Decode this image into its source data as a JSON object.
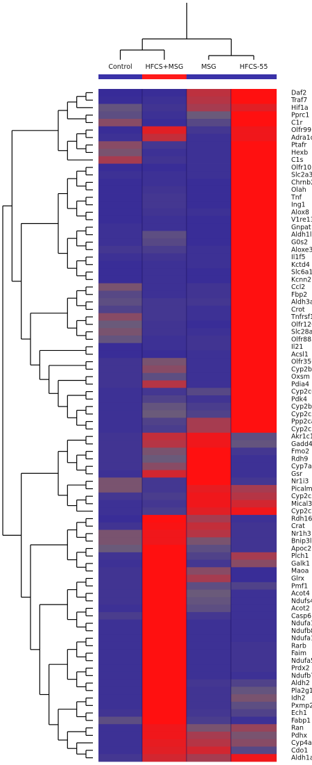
{
  "chart_data": {
    "type": "heatmap",
    "title": "",
    "xlabel": "",
    "ylabel": "",
    "columns": [
      "Control",
      "HFCS+MSG",
      "MSG",
      "HFCS-55"
    ],
    "column_groups": [
      [
        "Control",
        "HFCS+MSG"
      ],
      [
        "MSG",
        "HFCS-55"
      ]
    ],
    "column_bar_colors": [
      "#3a32a8",
      "#ff1a1a",
      "#3a32a8",
      "#3a32a8"
    ],
    "palette": {
      "low": "#2a1fa0",
      "mid": "#6a5a7a",
      "high": "#ff1010"
    },
    "scale_min": 0,
    "scale_max": 1,
    "genes": [
      "Daf2",
      "Traf7",
      "Hif1a",
      "Pprc1",
      "C1r",
      "Olfr99",
      "Adra1d",
      "Ptafr",
      "Hexb",
      "C1s",
      "Olfr1052",
      "Slc2a3",
      "Chrnb2",
      "Olah",
      "Tnf",
      "Ing1",
      "Alox8",
      "V1re13",
      "Gnpat",
      "Aldh1l2",
      "G0s2",
      "Aloxe3",
      "Il1f5",
      "Kctd4",
      "Slc6a15",
      "Kcnn2",
      "Ccl2",
      "Fbp2",
      "Aldh3a1",
      "Crot",
      "Tnfrsf10b",
      "Olfr1206",
      "Slc28a1",
      "Olfr883",
      "Il21",
      "Acsl1",
      "Olfr356",
      "Cyp2b9",
      "Oxsm",
      "Pdia4",
      "Cyp2c66",
      "Pdk4",
      "Cyp2b10",
      "Cyp2c37",
      "Ppp2ca",
      "Cyp2c50",
      "Akr1c19",
      "Gadd45b",
      "Fmo2",
      "Rdh9",
      "Cyp7a1",
      "Gsr",
      "Nr1i3",
      "Picalm",
      "Cyp2c55",
      "Mical3",
      "Cyp2c29",
      "Rdh16",
      "Crat",
      "Nr1h3",
      "Bnip3l",
      "Apoc2",
      "Plch1",
      "Galk1",
      "Maoa",
      "Glrx",
      "Pmf1",
      "Acot4",
      "Ndufs4",
      "Acot2",
      "Casp6",
      "Ndufa13",
      "Ndufb8",
      "Ndufa10",
      "Rarb",
      "Faim",
      "Ndufa5",
      "Prdx2",
      "Ndufb7",
      "Aldh2",
      "Pla2g12b",
      "Idh2",
      "Pxmp2",
      "Ech1",
      "Fabp1",
      "Ran",
      "Pdhx",
      "Cyp4a14",
      "Cdo1",
      "Aldh1a1"
    ],
    "values": [
      [
        0.1,
        0.12,
        0.78,
        1.0
      ],
      [
        0.12,
        0.15,
        0.75,
        1.0
      ],
      [
        0.45,
        0.18,
        0.7,
        0.9
      ],
      [
        0.4,
        0.15,
        0.5,
        1.0
      ],
      [
        0.6,
        0.12,
        0.35,
        1.0
      ],
      [
        0.12,
        0.9,
        0.2,
        0.95
      ],
      [
        0.15,
        0.8,
        0.15,
        0.95
      ],
      [
        0.6,
        0.2,
        0.15,
        1.0
      ],
      [
        0.55,
        0.15,
        0.15,
        1.0
      ],
      [
        0.7,
        0.18,
        0.15,
        1.0
      ],
      [
        0.12,
        0.12,
        0.15,
        1.0
      ],
      [
        0.15,
        0.15,
        0.15,
        1.0
      ],
      [
        0.12,
        0.15,
        0.12,
        1.0
      ],
      [
        0.12,
        0.18,
        0.12,
        1.0
      ],
      [
        0.12,
        0.2,
        0.12,
        1.0
      ],
      [
        0.12,
        0.2,
        0.12,
        1.0
      ],
      [
        0.12,
        0.18,
        0.15,
        1.0
      ],
      [
        0.12,
        0.15,
        0.12,
        1.0
      ],
      [
        0.15,
        0.15,
        0.12,
        1.0
      ],
      [
        0.15,
        0.4,
        0.12,
        1.0
      ],
      [
        0.15,
        0.35,
        0.12,
        1.0
      ],
      [
        0.2,
        0.25,
        0.15,
        1.0
      ],
      [
        0.15,
        0.18,
        0.15,
        1.0
      ],
      [
        0.12,
        0.15,
        0.15,
        1.0
      ],
      [
        0.12,
        0.15,
        0.12,
        1.0
      ],
      [
        0.12,
        0.15,
        0.12,
        1.0
      ],
      [
        0.55,
        0.15,
        0.18,
        1.0
      ],
      [
        0.35,
        0.15,
        0.18,
        1.0
      ],
      [
        0.4,
        0.2,
        0.2,
        1.0
      ],
      [
        0.3,
        0.2,
        0.15,
        1.0
      ],
      [
        0.6,
        0.2,
        0.15,
        1.0
      ],
      [
        0.5,
        0.18,
        0.12,
        1.0
      ],
      [
        0.55,
        0.18,
        0.15,
        1.0
      ],
      [
        0.45,
        0.15,
        0.18,
        1.0
      ],
      [
        0.12,
        0.15,
        0.18,
        1.0
      ],
      [
        0.12,
        0.12,
        0.15,
        1.0
      ],
      [
        0.18,
        0.55,
        0.15,
        1.0
      ],
      [
        0.18,
        0.6,
        0.15,
        1.0
      ],
      [
        0.18,
        0.4,
        0.15,
        1.0
      ],
      [
        0.18,
        0.75,
        0.15,
        1.0
      ],
      [
        0.15,
        0.2,
        0.35,
        1.0
      ],
      [
        0.15,
        0.3,
        0.18,
        1.0
      ],
      [
        0.15,
        0.45,
        0.25,
        1.0
      ],
      [
        0.15,
        0.5,
        0.3,
        1.0
      ],
      [
        0.15,
        0.3,
        0.7,
        1.0
      ],
      [
        0.15,
        0.25,
        0.7,
        1.0
      ],
      [
        0.18,
        0.8,
        0.95,
        0.4
      ],
      [
        0.18,
        0.75,
        0.95,
        0.45
      ],
      [
        0.18,
        0.55,
        1.0,
        0.2
      ],
      [
        0.18,
        0.5,
        1.0,
        0.15
      ],
      [
        0.18,
        0.6,
        1.0,
        0.15
      ],
      [
        0.15,
        0.85,
        1.0,
        0.15
      ],
      [
        0.55,
        0.2,
        1.0,
        0.2
      ],
      [
        0.55,
        0.2,
        0.92,
        0.7
      ],
      [
        0.2,
        0.25,
        0.95,
        0.75
      ],
      [
        0.15,
        0.2,
        0.95,
        0.85
      ],
      [
        0.15,
        0.25,
        0.9,
        0.95
      ],
      [
        0.12,
        1.0,
        0.7,
        0.15
      ],
      [
        0.18,
        0.98,
        0.8,
        0.18
      ],
      [
        0.55,
        0.95,
        0.75,
        0.18
      ],
      [
        0.55,
        0.95,
        0.55,
        0.18
      ],
      [
        0.5,
        1.0,
        0.4,
        0.18
      ],
      [
        0.18,
        1.0,
        0.3,
        0.7
      ],
      [
        0.15,
        1.0,
        0.2,
        0.6
      ],
      [
        0.18,
        1.0,
        0.6,
        0.12
      ],
      [
        0.18,
        1.0,
        0.7,
        0.12
      ],
      [
        0.18,
        1.0,
        0.4,
        0.3
      ],
      [
        0.18,
        1.0,
        0.5,
        0.15
      ],
      [
        0.18,
        1.0,
        0.45,
        0.15
      ],
      [
        0.15,
        1.0,
        0.4,
        0.15
      ],
      [
        0.25,
        1.0,
        0.2,
        0.15
      ],
      [
        0.15,
        1.0,
        0.15,
        0.15
      ],
      [
        0.15,
        1.0,
        0.15,
        0.15
      ],
      [
        0.15,
        1.0,
        0.15,
        0.15
      ],
      [
        0.15,
        1.0,
        0.15,
        0.18
      ],
      [
        0.15,
        1.0,
        0.15,
        0.18
      ],
      [
        0.15,
        1.0,
        0.15,
        0.18
      ],
      [
        0.15,
        1.0,
        0.15,
        0.18
      ],
      [
        0.15,
        1.0,
        0.15,
        0.15
      ],
      [
        0.15,
        1.0,
        0.2,
        0.3
      ],
      [
        0.15,
        1.0,
        0.18,
        0.45
      ],
      [
        0.15,
        1.0,
        0.18,
        0.55
      ],
      [
        0.15,
        1.0,
        0.18,
        0.4
      ],
      [
        0.18,
        1.0,
        0.2,
        0.3
      ],
      [
        0.4,
        1.0,
        0.25,
        0.15
      ],
      [
        0.15,
        0.95,
        0.55,
        0.65
      ],
      [
        0.15,
        0.95,
        0.7,
        0.55
      ],
      [
        0.15,
        0.92,
        0.75,
        0.6
      ],
      [
        0.15,
        0.9,
        0.85,
        0.35
      ],
      [
        0.2,
        0.85,
        0.7,
        0.95
      ]
    ],
    "row_tree": [
      [
        [
          [
            [
              [
                0,
                1
              ],
              2
            ],
            [
              3,
              4
            ]
          ],
          [
            [
              [
                5,
                6
              ],
              [
                7,
                8
              ]
            ],
            9
          ]
        ],
        [
          [
            [
              [
                [
                  10,
                  11
                ],
                [
                  12,
                  13
                ]
              ],
              [
                [
                  14,
                  15
                ],
                [
                  16,
                  17
                ]
              ]
            ],
            [
              [
                [
                  18,
                  19
                ],
                [
                  20,
                  21
                ]
              ],
              [
                [
                  22,
                  23
                ],
                [
                  24,
                  25
                ]
              ]
            ]
          ],
          [
            [
              [
                [
                  26,
                  27
                ],
                [
                  28,
                  29
                ]
              ],
              [
                [
                  30,
                  31
                ],
                [
                  32,
                  33
                ]
              ]
            ],
            [
              [
                34,
                35
              ],
              [
                [
                  36,
                  37
                ],
                [
                  [
                    38,
                    39
                  ],
                  [
                    [
                      40,
                      41
                    ],
                    [
                      [
                        42,
                        43
                      ],
                      [
                        44,
                        45
                      ]
                    ]
                  ]
                ]
              ]
            ]
          ]
        ]
      ],
      [
        [
          [
            [
              46,
              47
            ],
            [
              [
                48,
                49
              ],
              [
                50,
                51
              ]
            ]
          ],
          [
            [
              52,
              53
            ],
            [
              [
                54,
                55
              ],
              56
            ]
          ]
        ],
        [
          [
            [
              [
                57,
                58
              ],
              [
                59,
                60
              ]
            ],
            [
              [
                61,
                62
              ],
              [
                63,
                64
              ]
            ]
          ],
          [
            [
              [
                [
                  65,
                  66
                ],
                [
                  67,
                  68
                ]
              ],
              [
                [
                  69,
                  70
                ],
                [
                  71,
                  72
                ]
              ]
            ],
            [
              [
                [
                  [
                    73,
                    74
                  ],
                  [
                    75,
                    76
                  ]
                ],
                [
                  [
                    77,
                    78
                  ],
                  [
                    79,
                    80
                  ]
                ]
              ],
              [
                [
                  [
                    81,
                    82
                  ],
                  [
                    83,
                    84
                  ]
                ],
                [
                  [
                    85,
                    86
                  ],
                  [
                    87,
                    [
                      88,
                      89
                    ]
                  ]
                ]
              ]
            ]
          ]
        ]
      ]
    ]
  }
}
